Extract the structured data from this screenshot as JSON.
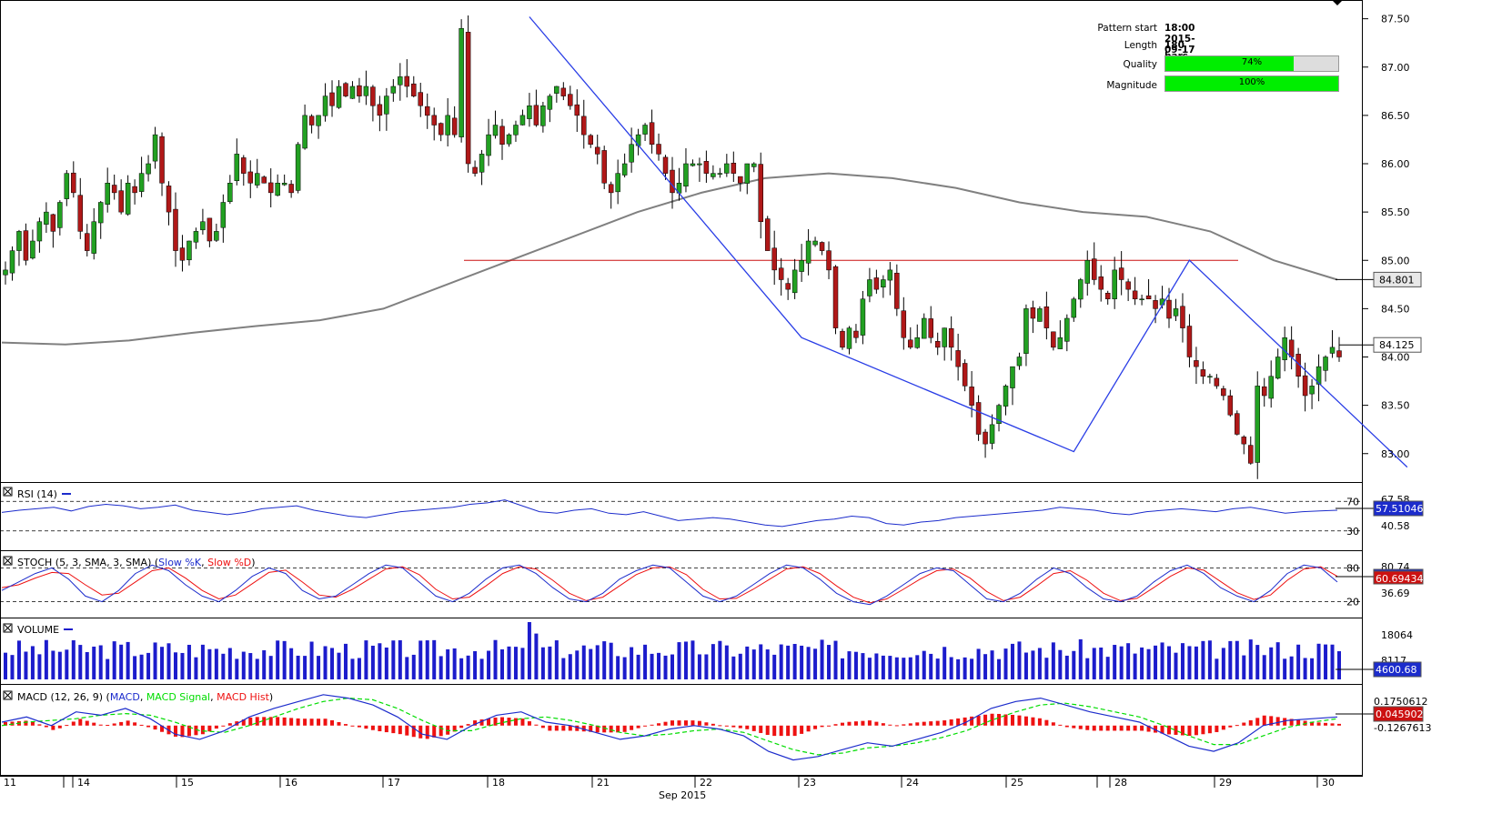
{
  "pattern_info": {
    "start_label": "Pattern start",
    "start_value": "18:00 2015-09-17",
    "length_label": "Length",
    "length_value": "180 bars",
    "quality_label": "Quality",
    "quality_value": "74%",
    "quality_fraction": 0.74,
    "magnitude_label": "Magnitude",
    "magnitude_value": "100%",
    "magnitude_fraction": 1.0
  },
  "colors": {
    "up": "#22a022",
    "down": "#b01818",
    "pattern_line": "#2a3ee6",
    "resistance": "#cc1111",
    "ma": "#808080",
    "rsi": "#1c2ccc",
    "stoch_k": "#1c2ccc",
    "stoch_d": "#ee1111",
    "volume": "#1c1ccc",
    "macd": "#1c2ccc",
    "macd_signal": "#00dd00",
    "macd_hist": "#ee1111"
  },
  "chart_data": {
    "type": "candlestick",
    "price_axis": {
      "ticks": [
        "87.50",
        "87.00",
        "86.50",
        "86.00",
        "85.50",
        "85.00",
        "84.50",
        "84.00",
        "83.50",
        "83.00"
      ],
      "ylim": [
        82.8,
        87.6
      ]
    },
    "price_marker": "84.801",
    "last_price": "84.125",
    "resistance_level": 85.0,
    "x_axis": {
      "ticks": [
        "11",
        "14",
        "15",
        "16",
        "17",
        "18",
        "21",
        "22",
        "23",
        "24",
        "25",
        "28",
        "29",
        "30"
      ],
      "month_label": "Sep 2015"
    },
    "pattern_points": [
      {
        "bar": 77,
        "price": 87.52
      },
      {
        "bar": 117,
        "price": 84.2
      },
      {
        "bar": 157,
        "price": 83.02
      },
      {
        "bar": 174,
        "price": 85.0
      },
      {
        "bar": 206,
        "price": 82.86
      }
    ],
    "candles_close": [
      84.9,
      85.1,
      85.3,
      85.0,
      85.2,
      85.4,
      85.5,
      85.3,
      85.6,
      85.9,
      85.7,
      85.3,
      85.1,
      85.4,
      85.6,
      85.8,
      85.7,
      85.5,
      85.8,
      85.7,
      85.9,
      86.0,
      86.3,
      85.8,
      85.5,
      85.1,
      85.0,
      85.2,
      85.3,
      85.4,
      85.2,
      85.3,
      85.6,
      85.8,
      86.1,
      85.9,
      85.8,
      85.9,
      85.8,
      85.7,
      85.8,
      85.8,
      85.7,
      86.2,
      86.5,
      86.4,
      86.5,
      86.7,
      86.6,
      86.8,
      86.7,
      86.8,
      86.7,
      86.8,
      86.6,
      86.5,
      86.7,
      86.8,
      86.9,
      86.8,
      86.7,
      86.6,
      86.5,
      86.4,
      86.3,
      86.5,
      86.3,
      87.4,
      86.0,
      85.9,
      86.1,
      86.3,
      86.4,
      86.2,
      86.3,
      86.4,
      86.5,
      86.6,
      86.4,
      86.6,
      86.7,
      86.8,
      86.7,
      86.6,
      86.5,
      86.3,
      86.2,
      86.1,
      85.8,
      85.7,
      85.9,
      86.0,
      86.2,
      86.3,
      86.4,
      86.2,
      86.1,
      85.9,
      85.7,
      85.8,
      86.0,
      86.0,
      86.0,
      85.9,
      85.9,
      85.9,
      86.0,
      85.9,
      85.8,
      86.0,
      86.0,
      85.4,
      85.1,
      84.9,
      84.8,
      84.7,
      84.9,
      85.0,
      85.2,
      85.2,
      85.1,
      84.9,
      84.3,
      84.1,
      84.3,
      84.2,
      84.6,
      84.8,
      84.7,
      84.8,
      84.9,
      84.5,
      84.2,
      84.1,
      84.2,
      84.4,
      84.2,
      84.1,
      84.3,
      84.1,
      83.9,
      83.7,
      83.5,
      83.2,
      83.1,
      83.3,
      83.5,
      83.7,
      83.9,
      84.0,
      84.5,
      84.4,
      84.5,
      84.3,
      84.1,
      84.2,
      84.4,
      84.6,
      84.8,
      85.0,
      84.8,
      84.7,
      84.6,
      84.9,
      84.8,
      84.7,
      84.6,
      84.6,
      84.6,
      84.5,
      84.6,
      84.4,
      84.5,
      84.3,
      84.0,
      83.9,
      83.8,
      83.8,
      83.7,
      83.6,
      83.4,
      83.2,
      83.1,
      82.9,
      83.7,
      83.6,
      83.8,
      84.0,
      84.2,
      84.0,
      83.8,
      83.6,
      83.7,
      83.9,
      84.0,
      84.1,
      84.0
    ],
    "ma": [
      84.15,
      84.13,
      84.17,
      84.25,
      84.32,
      84.38,
      84.5,
      84.75,
      85.0,
      85.25,
      85.5,
      85.7,
      85.85,
      85.9,
      85.85,
      85.75,
      85.6,
      85.5,
      85.45,
      85.3,
      85.0,
      84.8
    ],
    "rsi": {
      "label": "RSI (14)",
      "upper": "70",
      "lower": "30",
      "tick": "40.58",
      "value": "57.51046",
      "hidden_tick": "67.58",
      "values": [
        55,
        58,
        60,
        62,
        57,
        63,
        66,
        64,
        60,
        62,
        65,
        58,
        55,
        52,
        55,
        60,
        62,
        64,
        58,
        54,
        50,
        48,
        52,
        56,
        58,
        60,
        62,
        66,
        68,
        72,
        64,
        56,
        54,
        58,
        60,
        54,
        52,
        56,
        50,
        44,
        46,
        48,
        46,
        42,
        38,
        36,
        40,
        44,
        46,
        50,
        48,
        40,
        38,
        42,
        44,
        48,
        50,
        52,
        54,
        56,
        58,
        62,
        60,
        58,
        54,
        52,
        56,
        58,
        60,
        58,
        56,
        60,
        62,
        58,
        54,
        56,
        57,
        58
      ]
    },
    "stoch": {
      "label": "STOCH (5, 3, SMA, 3, SMA)",
      "k_label": "Slow %K",
      "d_label": "Slow %D",
      "upper": "80",
      "lower": "20",
      "value": "60.69434",
      "tick": "36.69",
      "hidden_tick": "80.74",
      "k": [
        40,
        55,
        70,
        80,
        60,
        30,
        20,
        40,
        70,
        85,
        75,
        50,
        30,
        20,
        40,
        65,
        80,
        70,
        40,
        25,
        30,
        50,
        70,
        85,
        80,
        55,
        30,
        20,
        35,
        60,
        80,
        85,
        70,
        45,
        25,
        20,
        35,
        60,
        75,
        85,
        80,
        55,
        30,
        20,
        30,
        50,
        70,
        85,
        80,
        60,
        35,
        20,
        15,
        30,
        50,
        70,
        80,
        75,
        50,
        25,
        20,
        35,
        60,
        80,
        70,
        45,
        25,
        20,
        30,
        55,
        75,
        85,
        70,
        45,
        30,
        20,
        40,
        70,
        85,
        80,
        55
      ],
      "d": [
        45,
        50,
        62,
        72,
        70,
        50,
        32,
        35,
        55,
        75,
        80,
        62,
        40,
        25,
        32,
        52,
        72,
        76,
        55,
        32,
        28,
        42,
        60,
        78,
        82,
        68,
        42,
        25,
        28,
        48,
        70,
        82,
        78,
        58,
        35,
        22,
        28,
        48,
        68,
        80,
        82,
        68,
        42,
        25,
        26,
        42,
        60,
        78,
        82,
        70,
        48,
        28,
        18,
        25,
        42,
        60,
        75,
        78,
        62,
        38,
        22,
        28,
        48,
        70,
        75,
        58,
        35,
        22,
        26,
        45,
        65,
        80,
        76,
        56,
        36,
        24,
        32,
        58,
        78,
        82,
        65
      ]
    },
    "volume": {
      "label": "VOLUME",
      "ticks": [
        "18064",
        "8117"
      ],
      "value": "4600.68"
    },
    "macd": {
      "label": "MACD (12, 26, 9)",
      "macd_label": "MACD",
      "signal_label": "MACD Signal",
      "hist_label": "MACD Hist",
      "upper_tick": "0.1750612",
      "lower_tick": "-0.1267613",
      "value": "0.0459021",
      "macd": [
        0.02,
        0.05,
        0.0,
        0.08,
        0.06,
        0.1,
        0.04,
        -0.05,
        -0.08,
        -0.03,
        0.05,
        0.1,
        0.14,
        0.18,
        0.16,
        0.12,
        0.05,
        -0.05,
        -0.08,
        0.0,
        0.06,
        0.08,
        0.02,
        0.0,
        -0.04,
        -0.08,
        -0.06,
        -0.02,
        0.0,
        -0.02,
        -0.06,
        -0.15,
        -0.2,
        -0.18,
        -0.14,
        -0.1,
        -0.12,
        -0.08,
        -0.04,
        0.02,
        0.1,
        0.14,
        0.16,
        0.12,
        0.08,
        0.05,
        0.02,
        -0.05,
        -0.12,
        -0.15,
        -0.1,
        0.0,
        0.03,
        0.04,
        0.05
      ],
      "signal": [
        0.0,
        0.02,
        0.03,
        0.04,
        0.06,
        0.07,
        0.06,
        0.02,
        -0.03,
        -0.04,
        0.0,
        0.05,
        0.1,
        0.14,
        0.16,
        0.15,
        0.1,
        0.03,
        -0.03,
        -0.03,
        0.01,
        0.04,
        0.05,
        0.03,
        0.0,
        -0.04,
        -0.06,
        -0.05,
        -0.03,
        -0.02,
        -0.04,
        -0.09,
        -0.14,
        -0.17,
        -0.16,
        -0.13,
        -0.12,
        -0.1,
        -0.07,
        -0.03,
        0.03,
        0.08,
        0.12,
        0.13,
        0.11,
        0.08,
        0.05,
        0.0,
        -0.06,
        -0.11,
        -0.11,
        -0.06,
        -0.01,
        0.02,
        0.04
      ]
    }
  }
}
